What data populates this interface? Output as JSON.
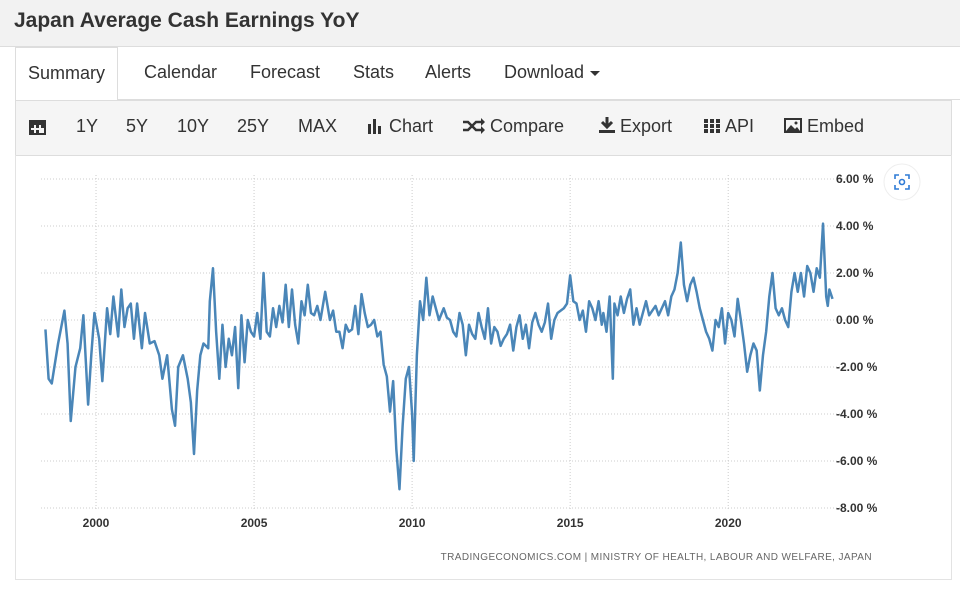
{
  "header": {
    "title": "Japan Average Cash Earnings YoY"
  },
  "tabs": [
    "Summary",
    "Calendar",
    "Forecast",
    "Stats",
    "Alerts",
    "Download"
  ],
  "toolbar": [
    "1Y",
    "5Y",
    "10Y",
    "25Y",
    "MAX",
    "Chart",
    "Compare",
    "Export",
    "API",
    "Embed"
  ],
  "chart_data": {
    "type": "line",
    "source": "TRADINGECONOMICS.COM | MINISTRY OF HEALTH, LABOUR AND WELFARE, JAPAN",
    "x": [
      1998.4,
      1998.5,
      1998.6,
      1998.8,
      1999.0,
      1999.1,
      1999.2,
      1999.35,
      1999.5,
      1999.6,
      1999.75,
      1999.85,
      1999.95,
      2000.1,
      2000.2,
      2000.35,
      2000.45,
      2000.55,
      2000.7,
      2000.8,
      2000.9,
      2001.0,
      2001.1,
      2001.2,
      2001.3,
      2001.45,
      2001.55,
      2001.7,
      2001.85,
      2002.0,
      2002.1,
      2002.25,
      2002.4,
      2002.5,
      2002.6,
      2002.75,
      2002.9,
      2003.0,
      2003.1,
      2003.2,
      2003.3,
      2003.4,
      2003.55,
      2003.6,
      2003.7,
      2003.8,
      2003.9,
      2004.0,
      2004.1,
      2004.2,
      2004.3,
      2004.4,
      2004.5,
      2004.6,
      2004.7,
      2004.8,
      2004.9,
      2005.0,
      2005.1,
      2005.2,
      2005.3,
      2005.4,
      2005.5,
      2005.6,
      2005.7,
      2005.8,
      2005.9,
      2006.0,
      2006.1,
      2006.2,
      2006.3,
      2006.4,
      2006.5,
      2006.6,
      2006.7,
      2006.8,
      2006.9,
      2007.0,
      2007.1,
      2007.25,
      2007.4,
      2007.5,
      2007.6,
      2007.7,
      2007.8,
      2007.9,
      2008.0,
      2008.1,
      2008.2,
      2008.3,
      2008.4,
      2008.5,
      2008.6,
      2008.7,
      2008.8,
      2008.9,
      2009.0,
      2009.1,
      2009.2,
      2009.3,
      2009.4,
      2009.5,
      2009.6,
      2009.7,
      2009.8,
      2009.9,
      2010.0,
      2010.05,
      2010.15,
      2010.25,
      2010.35,
      2010.45,
      2010.55,
      2010.65,
      2010.75,
      2010.85,
      2011.0,
      2011.1,
      2011.2,
      2011.3,
      2011.4,
      2011.5,
      2011.6,
      2011.7,
      2011.8,
      2011.9,
      2012.0,
      2012.1,
      2012.2,
      2012.3,
      2012.4,
      2012.5,
      2012.6,
      2012.7,
      2012.8,
      2012.9,
      2013.0,
      2013.1,
      2013.2,
      2013.3,
      2013.4,
      2013.5,
      2013.6,
      2013.7,
      2013.8,
      2013.9,
      2014.0,
      2014.1,
      2014.2,
      2014.3,
      2014.4,
      2014.5,
      2014.6,
      2014.7,
      2014.8,
      2014.9,
      2015.0,
      2015.1,
      2015.2,
      2015.3,
      2015.4,
      2015.5,
      2015.6,
      2015.7,
      2015.8,
      2015.9,
      2016.0,
      2016.05,
      2016.15,
      2016.25,
      2016.35,
      2016.4,
      2016.5,
      2016.6,
      2016.7,
      2016.8,
      2016.9,
      2017.0,
      2017.1,
      2017.2,
      2017.3,
      2017.4,
      2017.5,
      2017.6,
      2017.7,
      2017.8,
      2017.9,
      2018.0,
      2018.1,
      2018.2,
      2018.3,
      2018.4,
      2018.5,
      2018.6,
      2018.7,
      2018.8,
      2018.9,
      2019.0,
      2019.1,
      2019.2,
      2019.3,
      2019.4,
      2019.5,
      2019.6,
      2019.7,
      2019.8,
      2019.9,
      2020.0,
      2020.1,
      2020.2,
      2020.3,
      2020.4,
      2020.5,
      2020.6,
      2020.7,
      2020.8,
      2020.9,
      2021.0,
      2021.1,
      2021.2,
      2021.3,
      2021.4,
      2021.5,
      2021.6,
      2021.7,
      2021.8,
      2021.9,
      2022.0,
      2022.1,
      2022.2,
      2022.3,
      2022.4,
      2022.5,
      2022.6,
      2022.7,
      2022.8,
      2022.9,
      2023.0,
      2023.1,
      2023.15,
      2023.2,
      2023.3
    ],
    "series": [
      {
        "color": "#4a86b8",
        "values": [
          -0.4,
          -2.5,
          -2.7,
          -1.0,
          0.4,
          -1.0,
          -4.3,
          -2.0,
          -1.2,
          0.2,
          -3.6,
          -1.5,
          0.3,
          -0.8,
          -2.6,
          0.5,
          -0.6,
          1.0,
          -0.7,
          1.3,
          -0.3,
          0.5,
          0.7,
          -0.8,
          0.7,
          -1.2,
          0.3,
          -1.0,
          -0.9,
          -1.5,
          -2.5,
          -1.5,
          -3.8,
          -4.5,
          -2.0,
          -1.5,
          -2.5,
          -3.5,
          -5.7,
          -3.0,
          -1.5,
          -1.0,
          -1.2,
          0.8,
          2.2,
          -0.5,
          -2.5,
          -0.2,
          -2.0,
          -0.8,
          -1.5,
          -0.3,
          -2.9,
          0.2,
          -1.8,
          0.0,
          -0.5,
          -0.7,
          0.3,
          -0.8,
          2.0,
          -0.5,
          -0.7,
          0.5,
          -0.3,
          0.6,
          -0.1,
          1.5,
          -0.3,
          1.3,
          -0.2,
          -1.0,
          0.8,
          0.2,
          1.5,
          0.3,
          0.2,
          0.6,
          0.0,
          1.2,
          0.0,
          0.4,
          -0.5,
          -0.5,
          -1.2,
          -0.2,
          -0.5,
          -0.4,
          0.6,
          -0.6,
          1.1,
          0.3,
          -0.3,
          -0.2,
          0.0,
          -0.7,
          -0.5,
          -1.9,
          -2.4,
          -3.9,
          -2.6,
          -5.5,
          -7.2,
          -4.5,
          -2.5,
          -2.0,
          -4.0,
          -6.0,
          -1.5,
          0.8,
          0.0,
          1.8,
          0.2,
          1.0,
          0.5,
          0.0,
          0.5,
          0.1,
          0.0,
          -0.5,
          -0.7,
          0.3,
          -0.2,
          -1.5,
          -0.2,
          -0.6,
          -0.8,
          0.3,
          -0.3,
          -0.8,
          0.5,
          -1.0,
          -0.3,
          -0.5,
          -1.1,
          -0.8,
          -0.6,
          -0.2,
          -1.3,
          -0.3,
          0.2,
          -0.8,
          -0.2,
          -1.2,
          -0.1,
          0.3,
          -0.2,
          -0.5,
          -0.1,
          0.7,
          -0.8,
          0.0,
          0.3,
          0.4,
          0.5,
          0.7,
          1.9,
          0.8,
          0.7,
          0.0,
          0.4,
          -0.5,
          0.8,
          0.5,
          0.0,
          0.8,
          -0.2,
          0.3,
          -0.5,
          1.0,
          -2.5,
          0.7,
          0.2,
          1.0,
          0.3,
          0.9,
          1.3,
          -0.2,
          0.5,
          -0.2,
          0.3,
          0.8,
          0.2,
          0.4,
          0.6,
          0.2,
          0.5,
          0.8,
          0.2,
          1.0,
          1.3,
          2.0,
          3.3,
          1.5,
          0.8,
          1.5,
          1.8,
          1.2,
          0.5,
          0.0,
          -0.5,
          -0.8,
          -1.3,
          0.0,
          -0.3,
          0.5,
          -1.0,
          0.3,
          0.0,
          -0.7,
          0.9,
          0.0,
          -1.0,
          -2.2,
          -1.5,
          -1.0,
          -1.3,
          -3.0,
          -1.5,
          -0.5,
          1.0,
          2.0,
          0.5,
          0.2,
          0.5,
          0.0,
          -0.3,
          1.2,
          2.0,
          1.2,
          2.0,
          1.0,
          2.3,
          2.0,
          1.2,
          2.2,
          1.8,
          4.1,
          1.0,
          0.6,
          1.3,
          0.9
        ]
      }
    ],
    "xlim": [
      1997.5,
      2023.6
    ],
    "xticks": [
      2000,
      2005,
      2010,
      2015,
      2020
    ],
    "ylim": [
      -8,
      6
    ],
    "yticks": [
      {
        "value": -8,
        "label": "-8.00 %"
      },
      {
        "value": -6,
        "label": "-6.00 %"
      },
      {
        "value": -4,
        "label": "-4.00 %"
      },
      {
        "value": -2,
        "label": "-2.00 %"
      },
      {
        "value": 0,
        "label": "0.00 %"
      },
      {
        "value": 2,
        "label": "2.00 %"
      },
      {
        "value": 4,
        "label": "4.00 %"
      },
      {
        "value": 6,
        "label": "6.00 %"
      }
    ],
    "grid": true
  }
}
